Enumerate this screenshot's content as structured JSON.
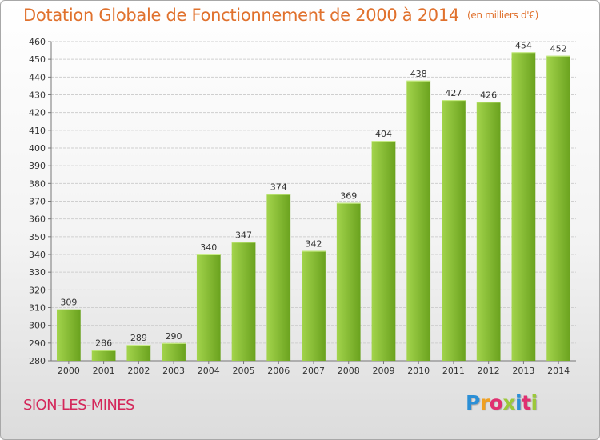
{
  "header": {
    "title": "Dotation Globale de Fonctionnement de 2000 à 2014",
    "unit": "(en milliers d'€)"
  },
  "footer": {
    "location": "SION-LES-MINES",
    "logo_text": "Proxiti",
    "logo_colors": [
      "#2b8fd6",
      "#f0a020",
      "#e03070",
      "#9bc83a",
      "#2b8fd6",
      "#e03070",
      "#9bc83a"
    ]
  },
  "colors": {
    "bar_light": "#a3d44c",
    "bar_dark": "#6aa21e",
    "grid": "#cfcfcf",
    "title": "#e0712d",
    "location": "#d4275a"
  },
  "chart_data": {
    "type": "bar",
    "title": "Dotation Globale de Fonctionnement de 2000 à 2014",
    "subtitle": "(en milliers d'€)",
    "xlabel": "",
    "ylabel": "",
    "categories": [
      "2000",
      "2001",
      "2002",
      "2003",
      "2004",
      "2005",
      "2006",
      "2007",
      "2008",
      "2009",
      "2010",
      "2011",
      "2012",
      "2013",
      "2014"
    ],
    "values": [
      309,
      286,
      289,
      290,
      340,
      347,
      374,
      342,
      369,
      404,
      438,
      427,
      426,
      454,
      452
    ],
    "ylim": [
      280,
      460
    ],
    "yticks": [
      280,
      290,
      300,
      310,
      320,
      330,
      340,
      350,
      360,
      370,
      380,
      390,
      400,
      410,
      420,
      430,
      440,
      450,
      460
    ],
    "grid": true,
    "legend": "none"
  }
}
